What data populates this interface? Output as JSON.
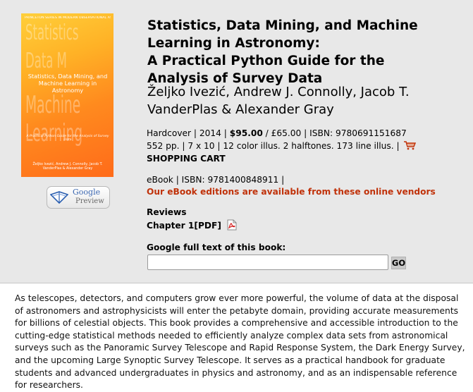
{
  "cover": {
    "series_label": "PRINCETON SERIES IN MODERN OBSERVATIONAL ASTRONOMY",
    "background_words": [
      "Statistics",
      "Data M",
      "Machine",
      "Learning"
    ],
    "title": "Statistics, Data Mining, and Machine Learning in Astronomy",
    "subtitle": "A Practical Python Guide for the Analysis of Survey Data",
    "authors": "Željko Ivezić, Andrew J. Connolly, Jacob T. VanderPlas & Alexander Gray"
  },
  "google_preview": {
    "label": "Google",
    "sublabel": "Preview"
  },
  "book": {
    "title_lines": [
      "Statistics, Data Mining, and Machine",
      "Learning in Astronomy:",
      "A Practical Python Guide for the",
      "Analysis of Survey Data"
    ],
    "author_lines": [
      "Željko Ivezić, Andrew J. Connolly, Jacob T.",
      "VanderPlas & Alexander Gray"
    ]
  },
  "hardcover": {
    "prefix": "Hardcover | 2014 | ",
    "price": "$95.00",
    "rest": " / £65.00 | ISBN: 9780691151687",
    "details": "552 pp. | 7 x 10 | 12 color illus. 2 halftones. 173 line illus. |",
    "cart_label": "SHOPPING CART"
  },
  "ebook": {
    "info": "eBook | ISBN: 9781400848911 |",
    "vendors_link": "Our eBook editions are available from these online vendors"
  },
  "reviews_label": "Reviews",
  "chapter_label": "Chapter 1[PDF]",
  "google_fulltext_label": "Google full text of this book:",
  "search": {
    "value": "",
    "go_label": "GO"
  },
  "description": "As telescopes, detectors, and computers grow ever more powerful, the volume of data at the disposal of astronomers and astrophysicists will enter the petabyte domain, providing accurate measurements for billions of celestial objects. This book provides a comprehensive and accessible introduction to the cutting-edge statistical methods needed to efficiently analyze complex data sets from astronomical surveys such as the Panoramic Survey Telescope and Rapid Response System, the Dark Energy Survey, and the upcoming Large Synoptic Survey Telescope. It serves as a practical handbook for graduate students and advanced undergraduates in physics and astronomy, and as an indispensable reference for researchers.",
  "colors": {
    "panel_bg": "#e8e8e8",
    "link_red": "#c0320a",
    "cover_orange": "#ff8a1e"
  },
  "icons": [
    "book-icon",
    "shopping-cart-icon",
    "pdf-icon"
  ]
}
